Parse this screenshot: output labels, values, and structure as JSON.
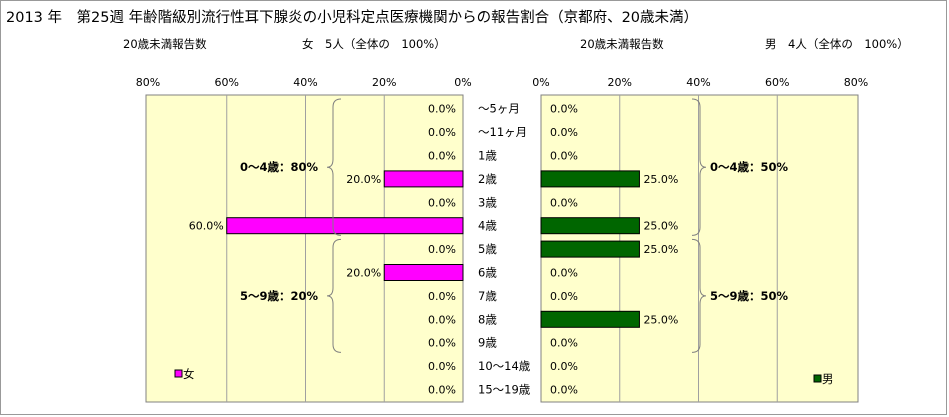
{
  "title": "2013 年　第25週 年齢階級別流行性耳下腺炎の小児科定点医療機関からの報告割合（京都府、20歳未満）",
  "left_header": "20歳未満報告数",
  "left_count": "女　5人（全体の　100%）",
  "right_header": "20歳未満報告数",
  "right_count": "男　4人（全体の　100%）",
  "chart_data": [
    {
      "type": "bar",
      "orientation": "horizontal",
      "direction": "right-to-left",
      "series": [
        {
          "name": "女",
          "color": "#ff00ff"
        }
      ],
      "categories": [
        "～5ヶ月",
        "～11ヶ月",
        "1歳",
        "2歳",
        "3歳",
        "4歳",
        "5歳",
        "6歳",
        "7歳",
        "8歳",
        "9歳",
        "10～14歳",
        "15～19歳"
      ],
      "values": [
        0,
        0,
        0,
        20,
        0,
        60,
        0,
        20,
        0,
        0,
        0,
        0,
        0
      ],
      "value_labels": [
        "0.0%",
        "0.0%",
        "0.0%",
        "20.0%",
        "0.0%",
        "60.0%",
        "0.0%",
        "20.0%",
        "0.0%",
        "0.0%",
        "0.0%",
        "0.0%",
        "0.0%"
      ],
      "xlim": [
        0,
        80
      ],
      "ticks": [
        "80%",
        "60%",
        "40%",
        "20%",
        "0%"
      ],
      "tick_values": [
        80,
        60,
        40,
        20,
        0
      ],
      "grid": true,
      "plot_background": "#ffffcc",
      "legend": "bottom-left",
      "annotations": [
        {
          "text": "0～4歳：80%",
          "rows": [
            0,
            5
          ]
        },
        {
          "text": "5～9歳：20%",
          "rows": [
            6,
            10
          ]
        }
      ]
    },
    {
      "type": "bar",
      "orientation": "horizontal",
      "direction": "left-to-right",
      "series": [
        {
          "name": "男",
          "color": "#006600"
        }
      ],
      "categories": [
        "～5ヶ月",
        "～11ヶ月",
        "1歳",
        "2歳",
        "3歳",
        "4歳",
        "5歳",
        "6歳",
        "7歳",
        "8歳",
        "9歳",
        "10～14歳",
        "15～19歳"
      ],
      "values": [
        0,
        0,
        0,
        25,
        0,
        25,
        25,
        0,
        0,
        25,
        0,
        0,
        0
      ],
      "value_labels": [
        "0.0%",
        "0.0%",
        "0.0%",
        "25.0%",
        "0.0%",
        "25.0%",
        "25.0%",
        "0.0%",
        "0.0%",
        "25.0%",
        "0.0%",
        "0.0%",
        "0.0%"
      ],
      "xlim": [
        0,
        80
      ],
      "ticks": [
        "0%",
        "20%",
        "40%",
        "60%",
        "80%"
      ],
      "tick_values": [
        0,
        20,
        40,
        60,
        80
      ],
      "grid": true,
      "plot_background": "#ffffcc",
      "legend": "bottom-right",
      "annotations": [
        {
          "text": "0～4歳：50%",
          "rows": [
            0,
            5
          ]
        },
        {
          "text": "5～9歳：50%",
          "rows": [
            6,
            10
          ]
        }
      ]
    }
  ]
}
